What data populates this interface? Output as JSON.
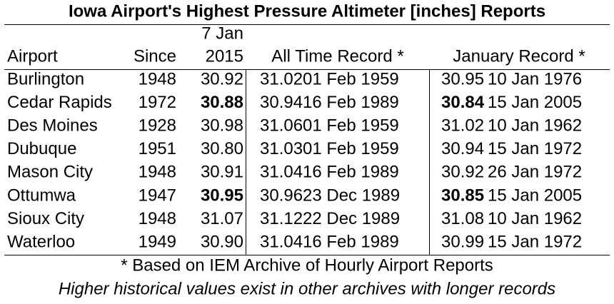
{
  "title": "Iowa Airport's Highest Pressure Altimeter [inches] Reports",
  "table": {
    "headers": {
      "airport": "Airport",
      "since": "Since",
      "date": [
        "7 Jan",
        "2015"
      ],
      "all_time": "All Time Record *",
      "january": "January Record *"
    },
    "rows": [
      [
        "Burlington",
        "1948",
        "30.92",
        "31.02",
        "01 Feb 1959",
        "30.95",
        "10 Jan 1976"
      ],
      [
        "Cedar Rapids",
        "1972",
        "30.88",
        "30.94",
        "16 Feb 1989",
        "30.84",
        "15 Jan 2005"
      ],
      [
        "Des Moines",
        "1928",
        "30.98",
        "31.06",
        "01 Feb 1959",
        "31.02",
        "10 Jan 1962"
      ],
      [
        "Dubuque",
        "1951",
        "30.80",
        "31.03",
        "01 Feb 1959",
        "30.94",
        "15 Jan 1972"
      ],
      [
        "Mason City",
        "1948",
        "30.91",
        "31.04",
        "16 Feb 1989",
        "30.92",
        "26 Jan 1972"
      ],
      [
        "Ottumwa",
        "1947",
        "30.95",
        "30.96",
        "23 Dec 1989",
        "30.85",
        "15 Jan 2005"
      ],
      [
        "Sioux City",
        "1948",
        "31.07",
        "31.12",
        "22 Dec 1989",
        "31.08",
        "10 Jan 1962"
      ],
      [
        "Waterloo",
        "1949",
        "30.90",
        "31.04",
        "16 Feb 1989",
        "30.99",
        "15 Jan 1972"
      ]
    ],
    "bold": [
      [
        1,
        2
      ],
      [
        1,
        5
      ],
      [
        5,
        2
      ],
      [
        5,
        5
      ]
    ]
  },
  "footnotes": [
    "* Based on IEM Archive of Hourly Airport Reports",
    "Higher historical values exist in other archives with longer records"
  ]
}
